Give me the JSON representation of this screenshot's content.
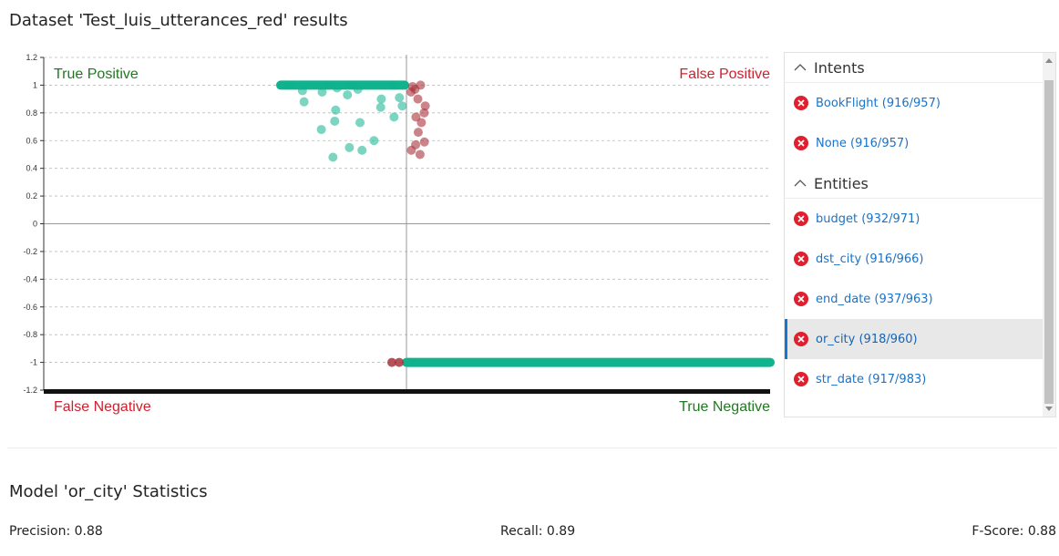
{
  "title": "Dataset 'Test_luis_utterances_red' results",
  "quadrants": {
    "top_left": "True Positive",
    "top_right": "False Positive",
    "bottom_left": "False Negative",
    "bottom_right": "True Negative"
  },
  "colors": {
    "true_color": "#0fb38e",
    "false_color": "#a8323a",
    "true_label": "#1f7a1f",
    "false_label": "#d0202e",
    "link": "#1a73c8",
    "selected_border": "#1677d2"
  },
  "chart_data": {
    "type": "scatter",
    "ylim": [
      -1.2,
      1.2
    ],
    "yticks": [
      "1.2",
      "1",
      "0.8",
      "0.6",
      "0.4",
      "0.2",
      "0",
      "-0.2",
      "-0.4",
      "-0.6",
      "-0.8",
      "-1",
      "-1.2"
    ],
    "threshold_note": "vertical divider separates correct (left) from incorrect (right) predictions",
    "series": [
      {
        "group": "true_positive",
        "y": [
          1,
          1,
          1,
          1,
          0.98,
          0.97,
          0.96,
          0.95,
          0.93,
          0.91,
          0.9,
          0.88,
          0.85,
          0.84,
          0.82,
          0.77,
          0.74,
          0.73,
          0.68,
          0.6,
          0.55,
          0.53,
          0.48
        ]
      },
      {
        "group": "false_positive",
        "y": [
          1,
          0.99,
          0.97,
          0.95,
          0.9,
          0.85,
          0.8,
          0.77,
          0.73,
          0.66,
          0.59,
          0.57,
          0.53,
          0.5
        ]
      },
      {
        "group": "false_negative",
        "y": [
          -1,
          -1
        ]
      },
      {
        "group": "true_negative",
        "y": [
          -1
        ]
      }
    ]
  },
  "panel": {
    "groups": [
      {
        "header": "Intents",
        "items": [
          {
            "label": "BookFlight (916/957)",
            "selected": false
          },
          {
            "label": "None (916/957)",
            "selected": false
          }
        ]
      },
      {
        "header": "Entities",
        "items": [
          {
            "label": "budget (932/971)",
            "selected": false
          },
          {
            "label": "dst_city (916/966)",
            "selected": false
          },
          {
            "label": "end_date (937/963)",
            "selected": false
          },
          {
            "label": "or_city (918/960)",
            "selected": true
          },
          {
            "label": "str_date (917/983)",
            "selected": false
          }
        ]
      }
    ]
  },
  "stats": {
    "title": "Model 'or_city' Statistics",
    "precision": "Precision: 0.88",
    "recall": "Recall: 0.89",
    "fscore": "F-Score: 0.88"
  }
}
